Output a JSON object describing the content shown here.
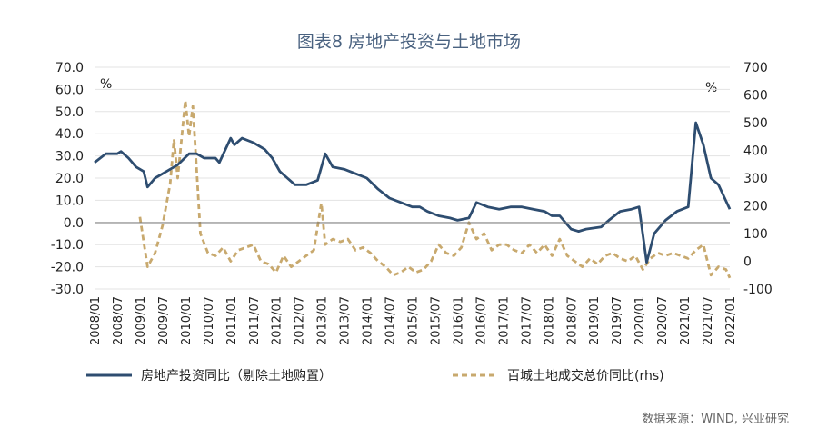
{
  "chart_data": {
    "type": "line",
    "title": "图表8 房地产投资与土地市场",
    "left_unit": "%",
    "right_unit": "%",
    "source": "数据来源：WIND, 兴业研究",
    "y_left": {
      "min": -30,
      "max": 70,
      "step": 10,
      "ticks": [
        "70.0",
        "60.0",
        "50.0",
        "40.0",
        "30.0",
        "20.0",
        "10.0",
        "0.0",
        "-10.0",
        "-20.0",
        "-30.0"
      ]
    },
    "y_right": {
      "min": -100,
      "max": 700,
      "step": 100,
      "ticks": [
        "700",
        "600",
        "500",
        "400",
        "300",
        "200",
        "100",
        "0",
        "-100"
      ]
    },
    "x_ticks": [
      "2008/01",
      "2008/07",
      "2009/01",
      "2009/07",
      "2010/01",
      "2010/07",
      "2011/01",
      "2011/07",
      "2012/01",
      "2012/07",
      "2013/01",
      "2013/07",
      "2014/01",
      "2014/07",
      "2015/01",
      "2015/07",
      "2016/01",
      "2016/07",
      "2017/01",
      "2017/07",
      "2018/01",
      "2018/07",
      "2019/01",
      "2019/07",
      "2020/01",
      "2020/07",
      "2021/01",
      "2021/07",
      "2022/01"
    ],
    "x_range": [
      "2008/01",
      "2022/01"
    ],
    "legend_position": "bottom",
    "series": [
      {
        "name": "房地产投资同比（剔除土地购置）",
        "axis": "left",
        "color": "#2e4d70",
        "style": "solid",
        "points": [
          [
            "2008/01",
            27
          ],
          [
            "2008/04",
            31
          ],
          [
            "2008/07",
            31
          ],
          [
            "2008/08",
            32
          ],
          [
            "2008/10",
            29
          ],
          [
            "2008/12",
            25
          ],
          [
            "2009/02",
            23
          ],
          [
            "2009/03",
            16
          ],
          [
            "2009/05",
            20
          ],
          [
            "2009/08",
            23
          ],
          [
            "2009/11",
            26
          ],
          [
            "2010/02",
            31
          ],
          [
            "2010/04",
            31
          ],
          [
            "2010/06",
            29
          ],
          [
            "2010/09",
            29
          ],
          [
            "2010/10",
            27
          ],
          [
            "2011/01",
            38
          ],
          [
            "2011/02",
            35
          ],
          [
            "2011/04",
            38
          ],
          [
            "2011/07",
            36
          ],
          [
            "2011/10",
            33
          ],
          [
            "2011/12",
            29
          ],
          [
            "2012/02",
            23
          ],
          [
            "2012/04",
            20
          ],
          [
            "2012/06",
            17
          ],
          [
            "2012/09",
            17
          ],
          [
            "2012/12",
            19
          ],
          [
            "2013/02",
            31
          ],
          [
            "2013/04",
            25
          ],
          [
            "2013/07",
            24
          ],
          [
            "2013/10",
            22
          ],
          [
            "2014/01",
            20
          ],
          [
            "2014/04",
            15
          ],
          [
            "2014/07",
            11
          ],
          [
            "2014/10",
            9
          ],
          [
            "2015/01",
            7
          ],
          [
            "2015/03",
            7
          ],
          [
            "2015/05",
            5
          ],
          [
            "2015/08",
            3
          ],
          [
            "2015/11",
            2
          ],
          [
            "2016/01",
            1
          ],
          [
            "2016/04",
            2
          ],
          [
            "2016/06",
            9
          ],
          [
            "2016/09",
            7
          ],
          [
            "2016/12",
            6
          ],
          [
            "2017/03",
            7
          ],
          [
            "2017/06",
            7
          ],
          [
            "2017/09",
            6
          ],
          [
            "2017/12",
            5
          ],
          [
            "2018/02",
            3
          ],
          [
            "2018/04",
            3
          ],
          [
            "2018/07",
            -3
          ],
          [
            "2018/09",
            -4
          ],
          [
            "2018/11",
            -3
          ],
          [
            "2019/03",
            -2
          ],
          [
            "2019/05",
            1
          ],
          [
            "2019/08",
            5
          ],
          [
            "2019/11",
            6
          ],
          [
            "2020/01",
            7
          ],
          [
            "2020/03",
            -18
          ],
          [
            "2020/05",
            -5
          ],
          [
            "2020/08",
            1
          ],
          [
            "2020/11",
            5
          ],
          [
            "2021/02",
            7
          ],
          [
            "2021/04",
            45
          ],
          [
            "2021/06",
            35
          ],
          [
            "2021/08",
            20
          ],
          [
            "2021/10",
            17
          ],
          [
            "2022/01",
            6
          ]
        ]
      },
      {
        "name": "百城土地成交总价同比(rhs)",
        "axis": "right",
        "color": "#c8a96e",
        "style": "dashed",
        "points": [
          [
            "2009/01",
            160
          ],
          [
            "2009/03",
            -20
          ],
          [
            "2009/05",
            30
          ],
          [
            "2009/07",
            130
          ],
          [
            "2009/09",
            280
          ],
          [
            "2009/10",
            440
          ],
          [
            "2009/11",
            300
          ],
          [
            "2010/01",
            580
          ],
          [
            "2010/02",
            450
          ],
          [
            "2010/03",
            560
          ],
          [
            "2010/05",
            100
          ],
          [
            "2010/07",
            30
          ],
          [
            "2010/09",
            20
          ],
          [
            "2010/11",
            50
          ],
          [
            "2011/01",
            0
          ],
          [
            "2011/03",
            40
          ],
          [
            "2011/05",
            50
          ],
          [
            "2011/07",
            60
          ],
          [
            "2011/09",
            0
          ],
          [
            "2011/11",
            -10
          ],
          [
            "2012/01",
            -40
          ],
          [
            "2012/03",
            20
          ],
          [
            "2012/05",
            -20
          ],
          [
            "2012/07",
            0
          ],
          [
            "2012/09",
            20
          ],
          [
            "2012/11",
            40
          ],
          [
            "2013/01",
            210
          ],
          [
            "2013/02",
            60
          ],
          [
            "2013/04",
            80
          ],
          [
            "2013/06",
            70
          ],
          [
            "2013/08",
            80
          ],
          [
            "2013/10",
            40
          ],
          [
            "2013/12",
            50
          ],
          [
            "2014/02",
            30
          ],
          [
            "2014/04",
            0
          ],
          [
            "2014/06",
            -20
          ],
          [
            "2014/08",
            -50
          ],
          [
            "2014/10",
            -40
          ],
          [
            "2014/12",
            -20
          ],
          [
            "2015/02",
            -40
          ],
          [
            "2015/04",
            -30
          ],
          [
            "2015/06",
            0
          ],
          [
            "2015/08",
            60
          ],
          [
            "2015/10",
            30
          ],
          [
            "2015/12",
            20
          ],
          [
            "2016/02",
            50
          ],
          [
            "2016/04",
            140
          ],
          [
            "2016/06",
            80
          ],
          [
            "2016/08",
            100
          ],
          [
            "2016/10",
            40
          ],
          [
            "2016/12",
            60
          ],
          [
            "2017/02",
            60
          ],
          [
            "2017/04",
            40
          ],
          [
            "2017/06",
            30
          ],
          [
            "2017/08",
            60
          ],
          [
            "2017/10",
            30
          ],
          [
            "2017/12",
            60
          ],
          [
            "2018/02",
            20
          ],
          [
            "2018/04",
            80
          ],
          [
            "2018/06",
            20
          ],
          [
            "2018/08",
            0
          ],
          [
            "2018/10",
            -20
          ],
          [
            "2018/12",
            10
          ],
          [
            "2019/02",
            -10
          ],
          [
            "2019/04",
            20
          ],
          [
            "2019/06",
            30
          ],
          [
            "2019/08",
            10
          ],
          [
            "2019/10",
            0
          ],
          [
            "2019/12",
            20
          ],
          [
            "2020/02",
            -30
          ],
          [
            "2020/04",
            10
          ],
          [
            "2020/06",
            30
          ],
          [
            "2020/08",
            20
          ],
          [
            "2020/10",
            30
          ],
          [
            "2020/12",
            20
          ],
          [
            "2021/02",
            10
          ],
          [
            "2021/04",
            40
          ],
          [
            "2021/06",
            60
          ],
          [
            "2021/08",
            -50
          ],
          [
            "2021/10",
            -20
          ],
          [
            "2021/12",
            -30
          ],
          [
            "2022/01",
            -60
          ]
        ]
      }
    ]
  }
}
